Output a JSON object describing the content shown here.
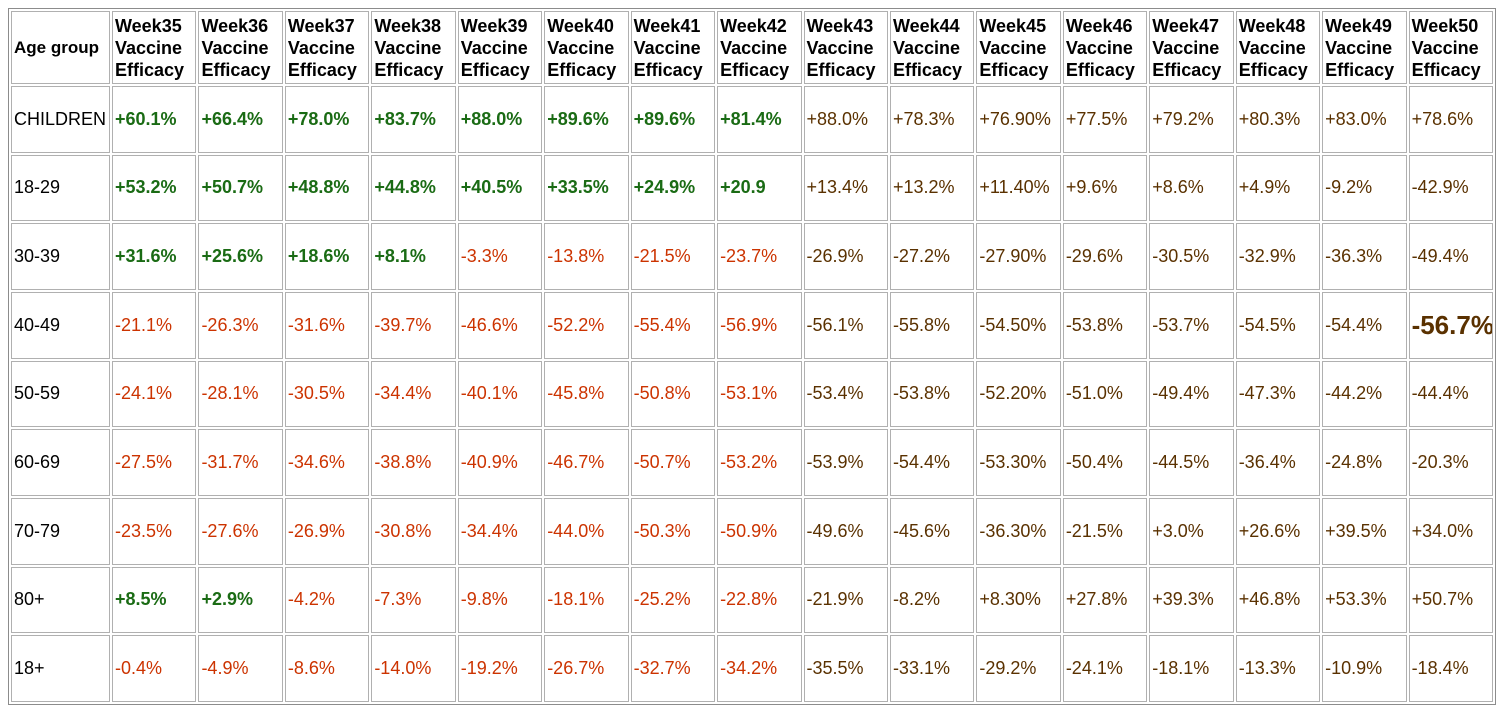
{
  "colors": {
    "positive_early": "#1a6b14",
    "negative_early": "#cc3300",
    "late": "#5a3100"
  },
  "table": {
    "corner_header": "Age group",
    "headers": [
      {
        "week": "Week35",
        "l2": "Vaccine",
        "l3": "Efficacy"
      },
      {
        "week": "Week36",
        "l2": "Vaccine",
        "l3": "Efficacy"
      },
      {
        "week": "Week37",
        "l2": "Vaccine",
        "l3": "Efficacy"
      },
      {
        "week": "Week38",
        "l2": "Vaccine",
        "l3": "Efficacy"
      },
      {
        "week": "Week39",
        "l2": "Vaccine",
        "l3": "Efficacy"
      },
      {
        "week": "Week40",
        "l2": "Vaccine",
        "l3": "Efficacy"
      },
      {
        "week": "Week41",
        "l2": "Vaccine",
        "l3": "Efficacy"
      },
      {
        "week": "Week42",
        "l2": "Vaccine",
        "l3": "Efficacy"
      },
      {
        "week": "Week43",
        "l2": "Vaccine",
        "l3": "Efficacy"
      },
      {
        "week": "Week44",
        "l2": "Vaccine",
        "l3": "Efficacy"
      },
      {
        "week": "Week45",
        "l2": "Vaccine",
        "l3": "Efficacy"
      },
      {
        "week": "Week46",
        "l2": "Vaccine",
        "l3": "Efficacy"
      },
      {
        "week": "Week47",
        "l2": "Vaccine",
        "l3": "Efficacy"
      },
      {
        "week": "Week48",
        "l2": "Vaccine",
        "l3": "Efficacy"
      },
      {
        "week": "Week49",
        "l2": "Vaccine",
        "l3": "Efficacy"
      },
      {
        "week": "Week50",
        "l2": "Vaccine",
        "l3": "Efficacy"
      }
    ],
    "rows": [
      {
        "label": "CHILDREN",
        "values": [
          "+60.1%",
          "+66.4%",
          "+78.0%",
          "+83.7%",
          "+88.0%",
          "+89.6%",
          "+89.6%",
          "+81.4%",
          "+88.0%",
          "+78.3%",
          "+76.90%",
          "+77.5%",
          "+79.2%",
          "+80.3%",
          "+83.0%",
          "+78.6%"
        ]
      },
      {
        "label": "18-29",
        "values": [
          "+53.2%",
          "+50.7%",
          "+48.8%",
          "+44.8%",
          "+40.5%",
          "+33.5%",
          "+24.9%",
          "+20.9",
          "+13.4%",
          "+13.2%",
          "+11.40%",
          "+9.6%",
          "+8.6%",
          "+4.9%",
          "-9.2%",
          "-42.9%"
        ]
      },
      {
        "label": "30-39",
        "values": [
          "+31.6%",
          "+25.6%",
          "+18.6%",
          "+8.1%",
          "-3.3%",
          "-13.8%",
          "-21.5%",
          "-23.7%",
          "-26.9%",
          "-27.2%",
          "-27.90%",
          "-29.6%",
          "-30.5%",
          "-32.9%",
          "-36.3%",
          "-49.4%"
        ]
      },
      {
        "label": "40-49",
        "values": [
          "-21.1%",
          "-26.3%",
          "-31.6%",
          "-39.7%",
          "-46.6%",
          "-52.2%",
          "-55.4%",
          "-56.9%",
          "-56.1%",
          "-55.8%",
          "-54.50%",
          "-53.8%",
          "-53.7%",
          "-54.5%",
          "-54.4%",
          "-56.7%"
        ]
      },
      {
        "label": "50-59",
        "values": [
          "-24.1%",
          "-28.1%",
          "-30.5%",
          "-34.4%",
          "-40.1%",
          "-45.8%",
          "-50.8%",
          "-53.1%",
          "-53.4%",
          "-53.8%",
          "-52.20%",
          "-51.0%",
          "-49.4%",
          "-47.3%",
          "-44.2%",
          "-44.4%"
        ]
      },
      {
        "label": "60-69",
        "values": [
          "-27.5%",
          "-31.7%",
          "-34.6%",
          "-38.8%",
          "-40.9%",
          "-46.7%",
          "-50.7%",
          "-53.2%",
          "-53.9%",
          "-54.4%",
          "-53.30%",
          "-50.4%",
          "-44.5%",
          "-36.4%",
          "-24.8%",
          "-20.3%"
        ]
      },
      {
        "label": "70-79",
        "values": [
          "-23.5%",
          "-27.6%",
          "-26.9%",
          "-30.8%",
          "-34.4%",
          "-44.0%",
          "-50.3%",
          "-50.9%",
          "-49.6%",
          "-45.6%",
          "-36.30%",
          "-21.5%",
          "+3.0%",
          "+26.6%",
          "+39.5%",
          "+34.0%"
        ]
      },
      {
        "label": "80+",
        "values": [
          "+8.5%",
          "+2.9%",
          "-4.2%",
          "-7.3%",
          "-9.8%",
          "-18.1%",
          "-25.2%",
          "-22.8%",
          "-21.9%",
          "-8.2%",
          "+8.30%",
          "+27.8%",
          "+39.3%",
          "+46.8%",
          "+53.3%",
          "+50.7%"
        ]
      },
      {
        "label": "18+",
        "values": [
          "-0.4%",
          "-4.9%",
          "-8.6%",
          "-14.0%",
          "-19.2%",
          "-26.7%",
          "-32.7%",
          "-34.2%",
          "-35.5%",
          "-33.1%",
          "-29.2%",
          "-24.1%",
          "-18.1%",
          "-13.3%",
          "-10.9%",
          "-18.4%"
        ]
      }
    ]
  }
}
